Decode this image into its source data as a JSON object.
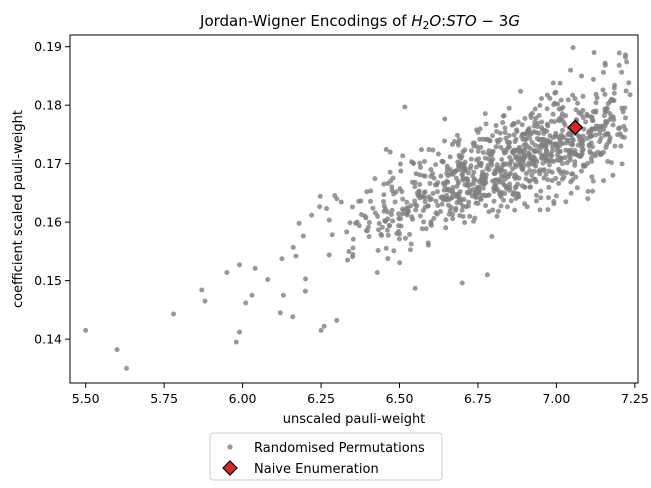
{
  "chart_data": {
    "type": "scatter",
    "title": {
      "prefix": "Jordan-Wigner Encodings of ",
      "formula": "H₂O:STO−3G",
      "formula_parts": [
        {
          "text": "H",
          "style": "italic"
        },
        {
          "text": "2",
          "style": "sub"
        },
        {
          "text": "O",
          "style": "italic"
        },
        {
          "text": ":",
          "style": "normal"
        },
        {
          "text": "STO",
          "style": "italic"
        },
        {
          "text": " − 3",
          "style": "normal"
        },
        {
          "text": "G",
          "style": "italic"
        }
      ]
    },
    "xlabel": "unscaled pauli-weight",
    "ylabel": "coefficient scaled pauli-weight",
    "xlim": [
      5.45,
      7.26
    ],
    "ylim": [
      0.1325,
      0.192
    ],
    "xticks": [
      5.5,
      5.75,
      6.0,
      6.25,
      6.5,
      6.75,
      7.0,
      7.25
    ],
    "xtick_labels": [
      "5.50",
      "5.75",
      "6.00",
      "6.25",
      "6.50",
      "6.75",
      "7.00",
      "7.25"
    ],
    "yticks": [
      0.14,
      0.15,
      0.16,
      0.17,
      0.18,
      0.19
    ],
    "ytick_labels": [
      "0.14",
      "0.15",
      "0.16",
      "0.17",
      "0.18",
      "0.19"
    ],
    "grid": false,
    "legend_placement": "below-center",
    "series": [
      {
        "name": "Randomised Permutations",
        "marker": "circle",
        "color": "#808080",
        "count_approx": 1000,
        "distribution": {
          "x_center": 6.88,
          "x_sd": 0.26,
          "x_min": 5.84,
          "x_max": 7.235,
          "fit_slope": 0.0223,
          "fit_intercept": 0.1706,
          "fit_x_ref": 6.88,
          "residual_sd": 0.0042,
          "seed": 1337
        },
        "points": [
          [
            5.5,
            0.1415
          ],
          [
            5.6,
            0.1382
          ],
          [
            5.63,
            0.135
          ],
          [
            5.78,
            0.1443
          ],
          [
            5.87,
            0.1484
          ],
          [
            5.88,
            0.1465
          ],
          [
            5.95,
            0.1514
          ],
          [
            5.98,
            0.1395
          ],
          [
            5.99,
            0.1412
          ],
          [
            5.99,
            0.1527
          ],
          [
            6.01,
            0.1462
          ],
          [
            6.03,
            0.1475
          ],
          [
            6.04,
            0.1521
          ],
          [
            6.08,
            0.1502
          ],
          [
            6.12,
            0.1445
          ],
          [
            6.13,
            0.1475
          ],
          [
            6.16,
            0.1438
          ],
          [
            6.17,
            0.1542
          ],
          [
            6.2,
            0.1482
          ],
          [
            6.25,
            0.1415
          ],
          [
            6.26,
            0.1422
          ],
          [
            6.3,
            0.1432
          ],
          [
            6.36,
            0.1598
          ],
          [
            6.43,
            0.161
          ],
          [
            6.5,
            0.158
          ],
          [
            6.55,
            0.1487
          ],
          [
            6.7,
            0.1496
          ],
          [
            6.78,
            0.151
          ],
          [
            6.95,
            0.1653
          ],
          [
            7.0,
            0.1645
          ],
          [
            7.03,
            0.1635
          ],
          [
            7.1,
            0.164
          ],
          [
            7.12,
            0.189
          ],
          [
            7.22,
            0.1882
          ],
          [
            7.2,
            0.1868
          ],
          [
            7.15,
            0.1856
          ],
          [
            7.08,
            0.185
          ],
          [
            6.99,
            0.1838
          ],
          [
            7.22,
            0.1758
          ],
          [
            7.18,
            0.168
          ],
          [
            6.75,
            0.1632
          ],
          [
            6.6,
            0.169
          ],
          [
            6.55,
            0.1668
          ],
          [
            6.45,
            0.1665
          ],
          [
            6.3,
            0.164
          ],
          [
            6.35,
            0.1626
          ],
          [
            6.22,
            0.1612
          ],
          [
            6.18,
            0.1598
          ]
        ]
      },
      {
        "name": "Naive Enumeration",
        "marker": "diamond",
        "color": "#d62728",
        "edge_color": "#000000",
        "points": [
          [
            7.06,
            0.1762
          ]
        ]
      }
    ]
  }
}
